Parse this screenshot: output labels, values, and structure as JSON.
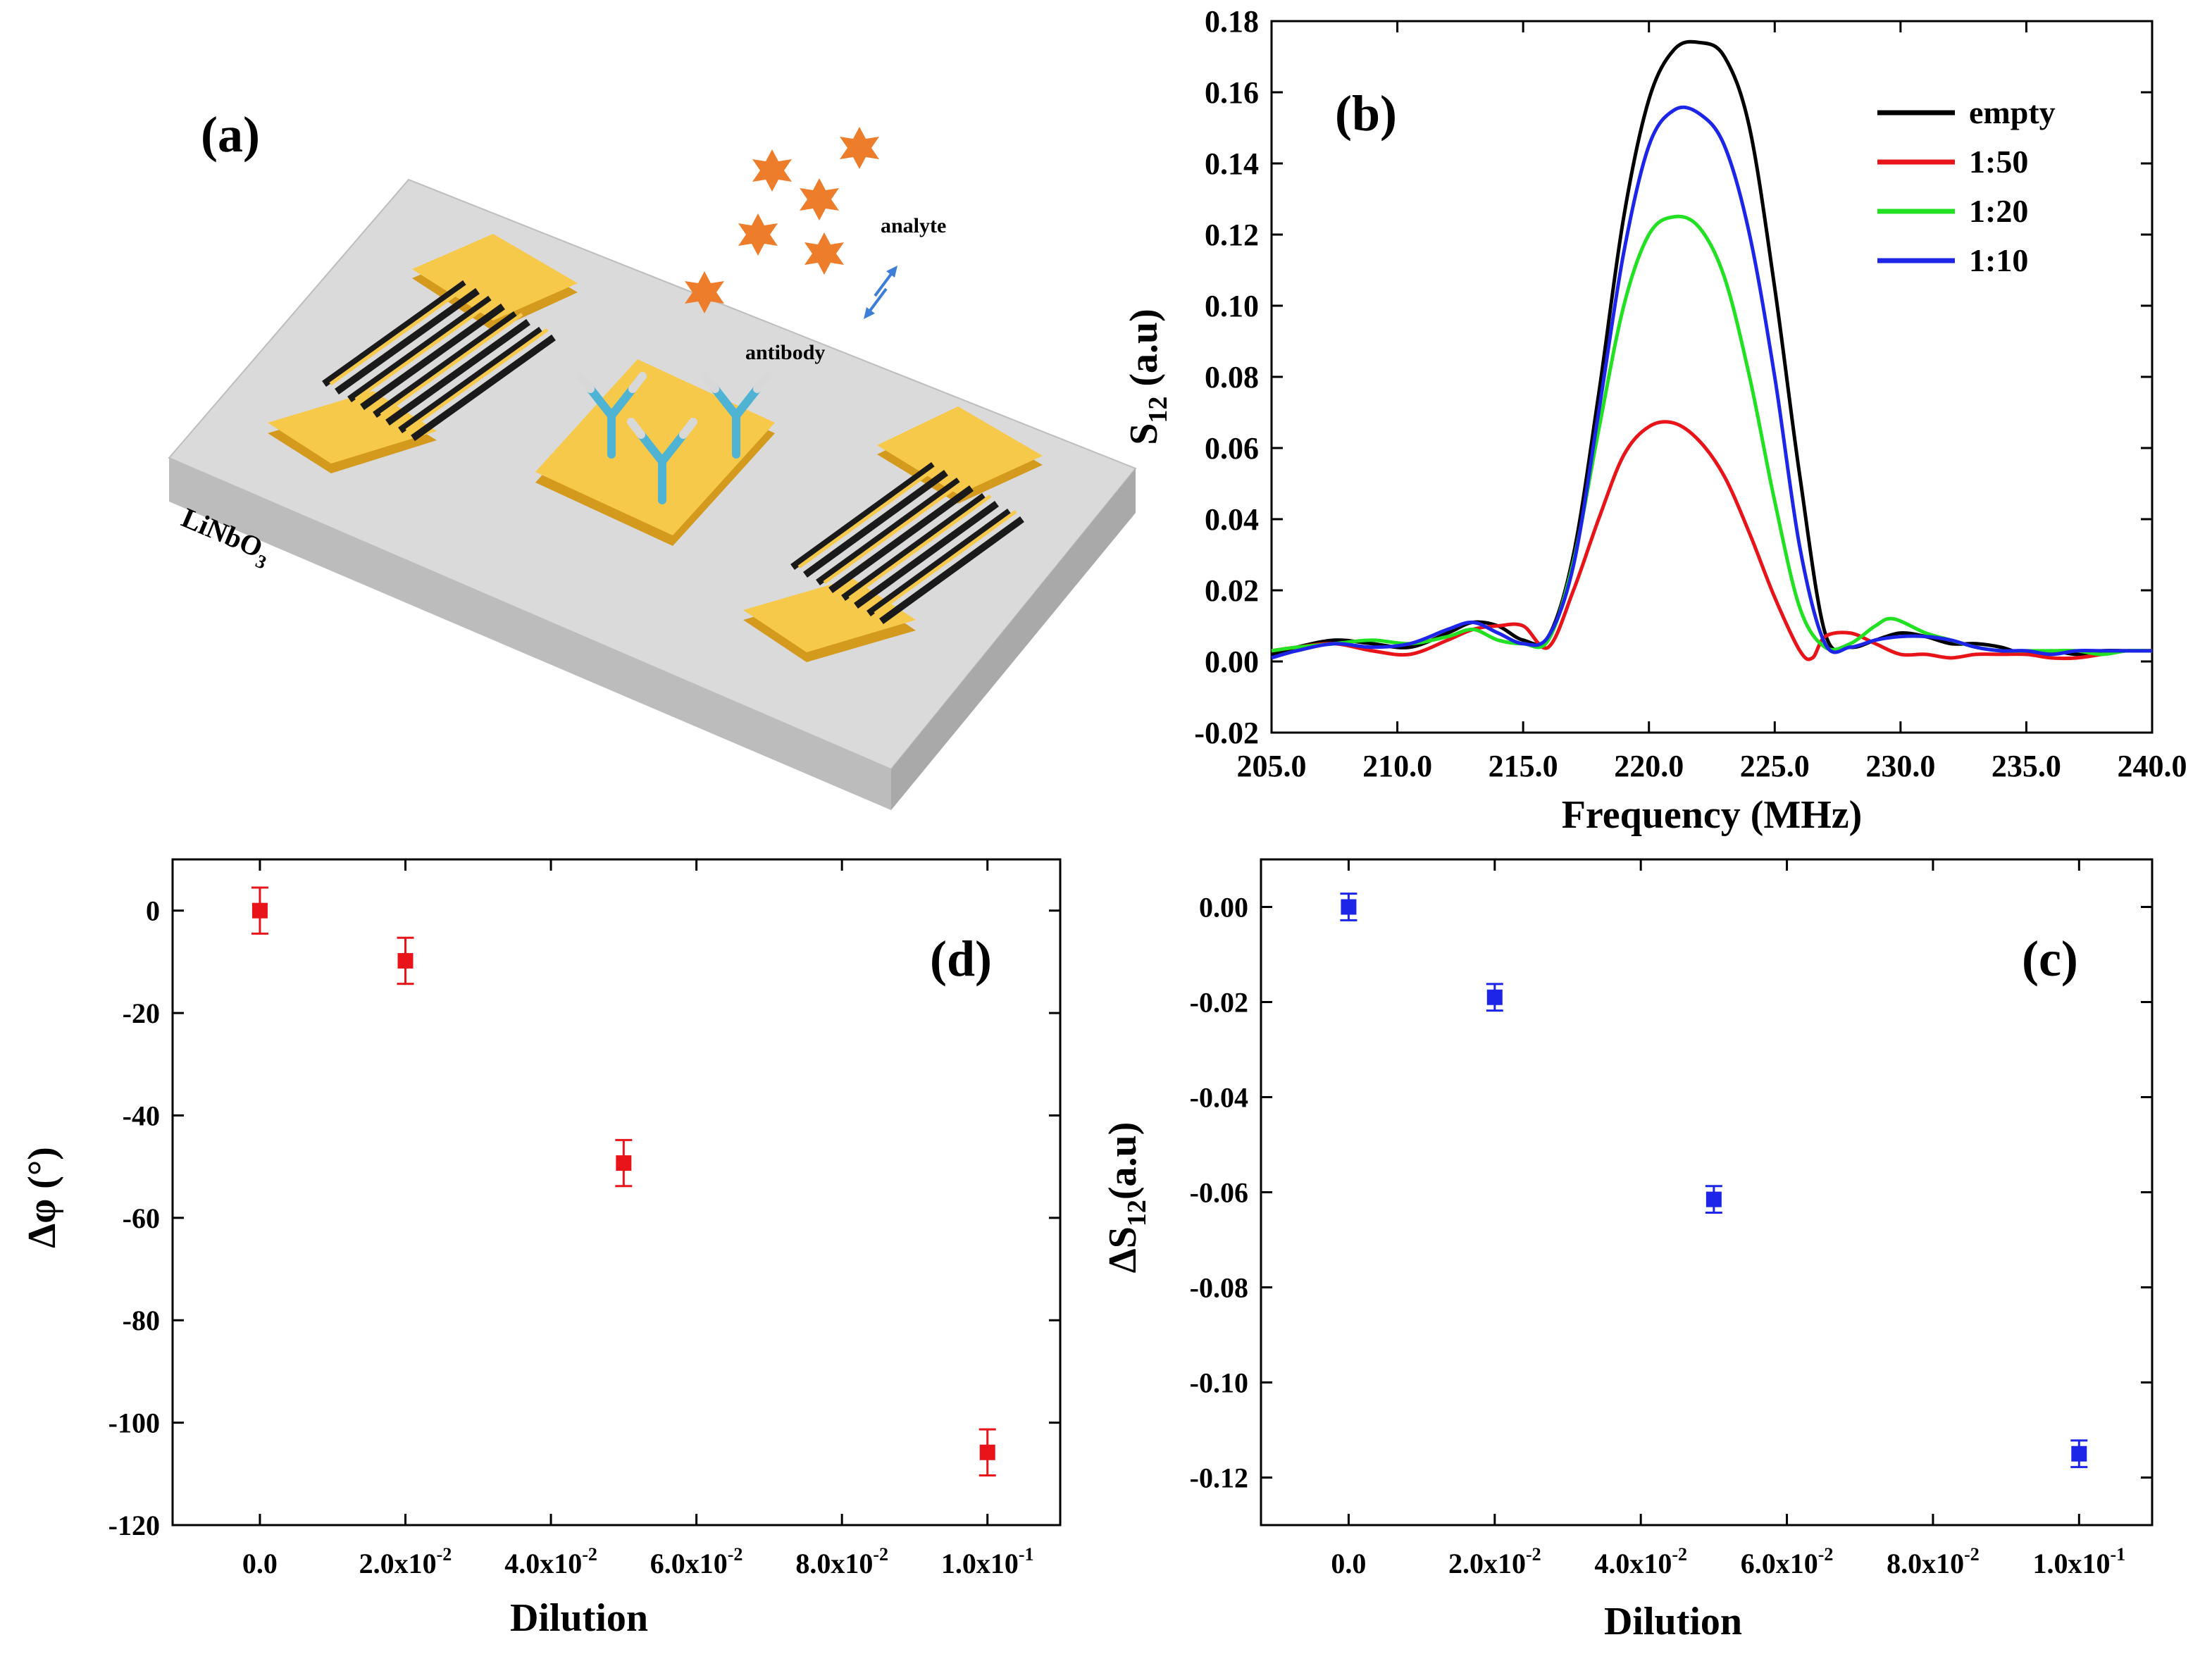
{
  "panel_a": {
    "label": "(a)",
    "substrate_label": "LiNbO",
    "substrate_subscript": "3",
    "analyte_label": "analyte",
    "antibody_label": "antibody",
    "colors": {
      "gold": "#f7c94a",
      "gold_dark": "#d39a1d",
      "substrate_top": "#dadada",
      "substrate_side": "#b3b3b3",
      "analyte": "#ee7d2b",
      "antibody": "#4fb3d4"
    }
  },
  "chart_data": [
    {
      "id": "b",
      "type": "line",
      "panel_label": "(b)",
      "xlabel": "Frequency (MHz)",
      "ylabel_main": "S",
      "ylabel_sub": "12",
      "ylabel_unit": " (a.u)",
      "xlim": [
        205,
        240
      ],
      "ylim": [
        -0.02,
        0.18
      ],
      "xticks": [
        205,
        210,
        215,
        220,
        225,
        230,
        235,
        240
      ],
      "xtick_labels": [
        "205.0",
        "210.0",
        "215.0",
        "220.0",
        "225.0",
        "230.0",
        "235.0",
        "240.0"
      ],
      "yticks": [
        -0.02,
        0.0,
        0.02,
        0.04,
        0.06,
        0.08,
        0.1,
        0.12,
        0.14,
        0.16,
        0.18
      ],
      "ytick_labels": [
        "-0.02",
        "0.00",
        "0.02",
        "0.04",
        "0.06",
        "0.08",
        "0.10",
        "0.12",
        "0.14",
        "0.16",
        "0.18"
      ],
      "legend_position": "top-right",
      "series": [
        {
          "name": "empty",
          "color": "#000000",
          "x": [
            205,
            206,
            207.5,
            209,
            210.5,
            212,
            213,
            214,
            215,
            216,
            217,
            218,
            219,
            220,
            221,
            222,
            223,
            224,
            225,
            226,
            227,
            228,
            229,
            230,
            231,
            232,
            233,
            234,
            235,
            236,
            237,
            238,
            239,
            240
          ],
          "y": [
            0.002,
            0.004,
            0.006,
            0.005,
            0.004,
            0.008,
            0.011,
            0.01,
            0.006,
            0.007,
            0.03,
            0.075,
            0.125,
            0.158,
            0.172,
            0.174,
            0.17,
            0.15,
            0.105,
            0.052,
            0.008,
            0.004,
            0.006,
            0.008,
            0.007,
            0.005,
            0.005,
            0.004,
            0.002,
            0.003,
            0.002,
            0.003,
            0.003,
            0.003
          ]
        },
        {
          "name": "1:50",
          "color": "#e8141a",
          "x": [
            205,
            206,
            207.5,
            209,
            210.5,
            212,
            213,
            214,
            215,
            216,
            217,
            218,
            219,
            220,
            221,
            222,
            223,
            224,
            225,
            226,
            226.5,
            227,
            228,
            229,
            230,
            231,
            232,
            233,
            234,
            235,
            236,
            237,
            238,
            239,
            240
          ],
          "y": [
            0.003,
            0.004,
            0.005,
            0.003,
            0.002,
            0.006,
            0.009,
            0.01,
            0.01,
            0.004,
            0.02,
            0.04,
            0.058,
            0.066,
            0.067,
            0.062,
            0.052,
            0.036,
            0.018,
            0.003,
            0.001,
            0.007,
            0.008,
            0.005,
            0.002,
            0.002,
            0.001,
            0.002,
            0.002,
            0.002,
            0.001,
            0.001,
            0.002,
            0.003,
            0.003
          ]
        },
        {
          "name": "1:20",
          "color": "#22e022",
          "x": [
            205,
            206,
            207.5,
            209,
            210.5,
            212,
            213,
            214,
            215,
            216,
            217,
            218,
            219,
            220,
            221,
            222,
            223,
            224,
            225,
            226,
            227,
            228,
            229,
            229.7,
            231,
            232,
            233,
            234,
            235,
            236,
            237,
            238,
            239,
            240
          ],
          "y": [
            0.003,
            0.004,
            0.005,
            0.006,
            0.005,
            0.007,
            0.009,
            0.006,
            0.005,
            0.006,
            0.028,
            0.065,
            0.1,
            0.12,
            0.125,
            0.122,
            0.108,
            0.08,
            0.045,
            0.015,
            0.004,
            0.005,
            0.01,
            0.012,
            0.008,
            0.006,
            0.004,
            0.003,
            0.003,
            0.003,
            0.003,
            0.002,
            0.003,
            0.003
          ]
        },
        {
          "name": "1:10",
          "color": "#1c25e8",
          "x": [
            205,
            206,
            207.5,
            209,
            210.5,
            212,
            213,
            214,
            215,
            216,
            217,
            218,
            219,
            220,
            221,
            222,
            223,
            224,
            225,
            226,
            227,
            228,
            229,
            230,
            231,
            232,
            233,
            234,
            235,
            236,
            237,
            238,
            239,
            240
          ],
          "y": [
            0.001,
            0.003,
            0.005,
            0.004,
            0.005,
            0.009,
            0.011,
            0.008,
            0.005,
            0.007,
            0.027,
            0.07,
            0.115,
            0.145,
            0.155,
            0.154,
            0.145,
            0.12,
            0.08,
            0.032,
            0.005,
            0.004,
            0.006,
            0.007,
            0.007,
            0.006,
            0.004,
            0.003,
            0.003,
            0.002,
            0.003,
            0.003,
            0.003,
            0.003
          ]
        }
      ]
    },
    {
      "id": "d",
      "type": "scatter",
      "panel_label": "(d)",
      "xlabel": "Dilution",
      "ylabel": "Δφ (°)",
      "xlim": [
        -0.012,
        0.11
      ],
      "ylim": [
        -120,
        10
      ],
      "xticks": [
        0,
        0.02,
        0.04,
        0.06,
        0.08,
        0.1
      ],
      "xtick_labels": [
        {
          "base": "0.0",
          "exp": ""
        },
        {
          "base": "2.0x10",
          "exp": "-2"
        },
        {
          "base": "4.0x10",
          "exp": "-2"
        },
        {
          "base": "6.0x10",
          "exp": "-2"
        },
        {
          "base": "8.0x10",
          "exp": "-2"
        },
        {
          "base": "1.0x10",
          "exp": "-1"
        }
      ],
      "yticks": [
        -120,
        -100,
        -80,
        -60,
        -40,
        -20,
        0
      ],
      "ytick_labels": [
        "-120",
        "-100",
        "-80",
        "-60",
        "-40",
        "-20",
        "0"
      ],
      "marker_color": "#e8141a",
      "x": [
        0,
        0.02,
        0.05,
        0.1
      ],
      "y": [
        0,
        -9.8,
        -49.3,
        -105.8
      ],
      "yerr": [
        4.5,
        4.5,
        4.5,
        4.5
      ]
    },
    {
      "id": "c",
      "type": "scatter",
      "panel_label": "(c)",
      "xlabel": "Dilution",
      "ylabel_main": "ΔS",
      "ylabel_sub": "12",
      "ylabel_unit": "(a.u)",
      "xlim": [
        -0.012,
        0.11
      ],
      "ylim": [
        -0.13,
        0.01
      ],
      "xticks": [
        0,
        0.02,
        0.04,
        0.06,
        0.08,
        0.1
      ],
      "xtick_labels": [
        {
          "base": "0.0",
          "exp": ""
        },
        {
          "base": "2.0x10",
          "exp": "-2"
        },
        {
          "base": "4.0x10",
          "exp": "-2"
        },
        {
          "base": "6.0x10",
          "exp": "-2"
        },
        {
          "base": "8.0x10",
          "exp": "-2"
        },
        {
          "base": "1.0x10",
          "exp": "-1"
        }
      ],
      "yticks": [
        -0.12,
        -0.1,
        -0.08,
        -0.06,
        -0.04,
        -0.02,
        0.0
      ],
      "ytick_labels": [
        "-0.12",
        "-0.10",
        "-0.08",
        "-0.06",
        "-0.04",
        "-0.02",
        "0.00"
      ],
      "marker_color": "#1c25e8",
      "x": [
        0,
        0.02,
        0.05,
        0.1
      ],
      "y": [
        0.0,
        -0.019,
        -0.0615,
        -0.115
      ],
      "yerr": [
        0.0028,
        0.0028,
        0.0028,
        0.0028
      ]
    }
  ]
}
